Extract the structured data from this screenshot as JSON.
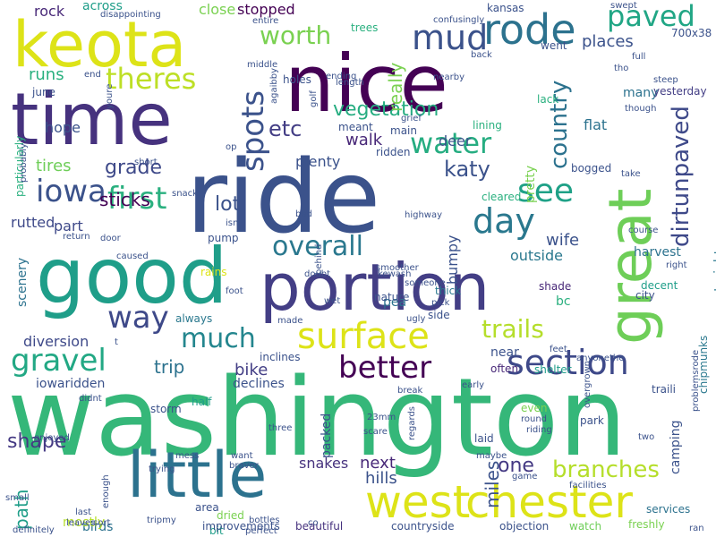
{
  "words": [
    {
      "text": "washington",
      "color": "#35b779"
    },
    {
      "text": "ride",
      "color": "#3b528b"
    },
    {
      "text": "nice",
      "color": "#440154"
    },
    {
      "text": "time",
      "color": "#46327e"
    },
    {
      "text": "good",
      "color": "#1f9e89"
    },
    {
      "text": "portion",
      "color": "#433e85"
    },
    {
      "text": "great",
      "color": "#6ece58"
    },
    {
      "text": "keota",
      "color": "#dde318"
    },
    {
      "text": "little",
      "color": "#2c728e"
    },
    {
      "text": "west",
      "color": "#dde318"
    },
    {
      "text": "chester",
      "color": "#dde318"
    },
    {
      "text": "rode",
      "color": "#2c728e"
    },
    {
      "text": "surface",
      "color": "#dde318"
    },
    {
      "text": "section",
      "color": "#3e4989"
    },
    {
      "text": "better",
      "color": "#440154"
    },
    {
      "text": "mud",
      "color": "#3b528b"
    },
    {
      "text": "iowa",
      "color": "#3b528b"
    },
    {
      "text": "first",
      "color": "#2ab07f"
    },
    {
      "text": "day",
      "color": "#2a788e"
    },
    {
      "text": "see",
      "color": "#1fa187"
    },
    {
      "text": "water",
      "color": "#26ad81"
    },
    {
      "text": "paved",
      "color": "#21a685"
    },
    {
      "text": "dirtunpaved",
      "color": "#3e4989"
    },
    {
      "text": "country",
      "color": "#2c728e"
    },
    {
      "text": "spots",
      "color": "#3b528b"
    },
    {
      "text": "theres",
      "color": "#bddf26"
    },
    {
      "text": "worth",
      "color": "#7ad151"
    },
    {
      "text": "vegetation",
      "color": "#26ad81"
    },
    {
      "text": "much",
      "color": "#24868e"
    },
    {
      "text": "way",
      "color": "#3e4989"
    },
    {
      "text": "overall",
      "color": "#2a788e"
    },
    {
      "text": "trails",
      "color": "#b5de2b"
    },
    {
      "text": "gravel",
      "color": "#22a884"
    },
    {
      "text": "branches",
      "color": "#b5de2b"
    },
    {
      "text": "shape",
      "color": "#443983"
    },
    {
      "text": "grade",
      "color": "#3e4989"
    },
    {
      "text": "katy",
      "color": "#3b528b"
    },
    {
      "text": "etc",
      "color": "#433e85"
    },
    {
      "text": "lot",
      "color": "#3b528b"
    },
    {
      "text": "sticks",
      "color": "#440154"
    },
    {
      "text": "really",
      "color": "#7ad151"
    },
    {
      "text": "walk",
      "color": "#482878"
    },
    {
      "text": "places",
      "color": "#3b528b"
    },
    {
      "text": "plenty",
      "color": "#3b528b"
    },
    {
      "text": "bike",
      "color": "#433e85"
    },
    {
      "text": "trip",
      "color": "#2c728e"
    },
    {
      "text": "stopped",
      "color": "#440154"
    },
    {
      "text": "close",
      "color": "#7ad151"
    },
    {
      "text": "across",
      "color": "#1f9e89"
    },
    {
      "text": "rock",
      "color": "#482878"
    },
    {
      "text": "runs",
      "color": "#2ab07f"
    },
    {
      "text": "deer",
      "color": "#3b528b"
    },
    {
      "text": "wife",
      "color": "#3b528b"
    },
    {
      "text": "harvest",
      "color": "#2c728e"
    },
    {
      "text": "outside",
      "color": "#2a788e"
    },
    {
      "text": "rutted",
      "color": "#3e4989"
    },
    {
      "text": "part",
      "color": "#3e4989"
    },
    {
      "text": "tires",
      "color": "#6ece58"
    },
    {
      "text": "hope",
      "color": "#3b528b"
    },
    {
      "text": "scenery",
      "color": "#2c728e"
    },
    {
      "text": "diversion",
      "color": "#3e4989"
    },
    {
      "text": "next",
      "color": "#482878"
    },
    {
      "text": "snakes",
      "color": "#46327e"
    },
    {
      "text": "one",
      "color": "#443983"
    },
    {
      "text": "hills",
      "color": "#3b528b"
    },
    {
      "text": "miles",
      "color": "#3b528b"
    },
    {
      "text": "path",
      "color": "#1f9e89"
    },
    {
      "text": "birds",
      "color": "#2c728e"
    },
    {
      "text": "mostly",
      "color": "#b5de2b"
    },
    {
      "text": "bit",
      "color": "#1f9e89"
    },
    {
      "text": "area",
      "color": "#3b528b"
    },
    {
      "text": "dried",
      "color": "#7ad151"
    },
    {
      "text": "improvements",
      "color": "#3b528b"
    },
    {
      "text": "beautiful",
      "color": "#46327e"
    },
    {
      "text": "countryside",
      "color": "#3b528b"
    },
    {
      "text": "objection",
      "color": "#3b528b"
    },
    {
      "text": "watch",
      "color": "#6ece58"
    },
    {
      "text": "freshly",
      "color": "#7ad151"
    },
    {
      "text": "services",
      "color": "#2c728e"
    },
    {
      "text": "iowaridden",
      "color": "#3b528b"
    },
    {
      "text": "half",
      "color": "#1f9e89"
    },
    {
      "text": "declines",
      "color": "#3b528b"
    },
    {
      "text": "inclines",
      "color": "#3b528b"
    },
    {
      "text": "always",
      "color": "#2a788e"
    },
    {
      "text": "packed",
      "color": "#3b528b"
    },
    {
      "text": "near",
      "color": "#3b528b"
    },
    {
      "text": "often",
      "color": "#482878"
    },
    {
      "text": "decent",
      "color": "#1f9e89"
    },
    {
      "text": "bumpy",
      "color": "#3b528b"
    },
    {
      "text": "pea",
      "color": "#2c728e"
    },
    {
      "text": "thick",
      "color": "#2a788e"
    },
    {
      "text": "bc",
      "color": "#2ab07f"
    },
    {
      "text": "shade",
      "color": "#482878"
    },
    {
      "text": "city",
      "color": "#3b528b"
    },
    {
      "text": "pretty",
      "color": "#7ad151"
    },
    {
      "text": "flat",
      "color": "#2c728e"
    },
    {
      "text": "many",
      "color": "#2c728e"
    },
    {
      "text": "yesterday",
      "color": "#433e85"
    },
    {
      "text": "straight",
      "color": "#2a788e"
    },
    {
      "text": "chipmunks",
      "color": "#2a788e"
    },
    {
      "text": "camping",
      "color": "#3b528b"
    },
    {
      "text": "traili",
      "color": "#3b528b"
    },
    {
      "text": "park",
      "color": "#3b528b"
    },
    {
      "text": "shelter",
      "color": "#1f9e89"
    },
    {
      "text": "laid",
      "color": "#3b528b"
    },
    {
      "text": "even",
      "color": "#7ad151"
    },
    {
      "text": "storm",
      "color": "#3b528b"
    },
    {
      "text": "rains",
      "color": "#dde318"
    },
    {
      "text": "pump",
      "color": "#3b528b"
    },
    {
      "text": "lining",
      "color": "#2ab07f"
    },
    {
      "text": "ridden",
      "color": "#3b528b"
    },
    {
      "text": "main",
      "color": "#3b528b"
    },
    {
      "text": "meant",
      "color": "#3b528b"
    },
    {
      "text": "lack",
      "color": "#2ab07f"
    },
    {
      "text": "went",
      "color": "#3b528b"
    },
    {
      "text": "kansas",
      "color": "#3b528b"
    },
    {
      "text": "trees",
      "color": "#2ab07f"
    },
    {
      "text": "holes",
      "color": "#3b528b"
    },
    {
      "text": "end",
      "color": "#3b528b"
    },
    {
      "text": "june",
      "color": "#3b528b"
    },
    {
      "text": "particularly",
      "color": "#2ab07f"
    },
    {
      "text": "bogged",
      "color": "#3b528b"
    },
    {
      "text": "cleared",
      "color": "#2ab07f"
    },
    {
      "text": "nature",
      "color": "#3b528b"
    },
    {
      "text": "side",
      "color": "#3b528b"
    },
    {
      "text": "700x38",
      "color": "#3b528b"
    },
    {
      "text": "disappointing",
      "color": "#3b528b"
    },
    {
      "text": "entire",
      "color": "#3b528b"
    },
    {
      "text": "confusingly",
      "color": "#3b528b"
    },
    {
      "text": "swept",
      "color": "#3b528b"
    },
    {
      "text": "full",
      "color": "#3b528b"
    },
    {
      "text": "tho",
      "color": "#3b528b"
    },
    {
      "text": "steep",
      "color": "#3b528b"
    },
    {
      "text": "though",
      "color": "#3b528b"
    },
    {
      "text": "middle",
      "color": "#3b528b"
    },
    {
      "text": "ending",
      "color": "#3b528b"
    },
    {
      "text": "back",
      "color": "#3b528b"
    },
    {
      "text": "length",
      "color": "#3b528b"
    },
    {
      "text": "nearby",
      "color": "#3b528b"
    },
    {
      "text": "grief",
      "color": "#3b528b"
    },
    {
      "text": "take",
      "color": "#3b528b"
    },
    {
      "text": "agaibby",
      "color": "#3b528b"
    },
    {
      "text": "golf",
      "color": "#3b528b"
    },
    {
      "text": "youre",
      "color": "#3b528b"
    },
    {
      "text": "probably",
      "color": "#3b528b"
    },
    {
      "text": "short",
      "color": "#3b528b"
    },
    {
      "text": "op",
      "color": "#3b528b"
    },
    {
      "text": "snack",
      "color": "#3b528b"
    },
    {
      "text": "bad",
      "color": "#3b528b"
    },
    {
      "text": "isn",
      "color": "#3b528b"
    },
    {
      "text": "behind",
      "color": "#3b528b"
    },
    {
      "text": "highway",
      "color": "#3b528b"
    },
    {
      "text": "door",
      "color": "#3b528b"
    },
    {
      "text": "return",
      "color": "#3b528b"
    },
    {
      "text": "caused",
      "color": "#3b528b"
    },
    {
      "text": "foot",
      "color": "#3b528b"
    },
    {
      "text": "doubt",
      "color": "#3b528b"
    },
    {
      "text": "kewash",
      "color": "#3b528b"
    },
    {
      "text": "smoother",
      "color": "#3b528b"
    },
    {
      "text": "someone",
      "color": "#3b528b"
    },
    {
      "text": "pick",
      "color": "#3b528b"
    },
    {
      "text": "wet",
      "color": "#3b528b"
    },
    {
      "text": "made",
      "color": "#3b528b"
    },
    {
      "text": "ugly",
      "color": "#3b528b"
    },
    {
      "text": "course",
      "color": "#3b528b"
    },
    {
      "text": "right",
      "color": "#3b528b"
    },
    {
      "text": "feet",
      "color": "#3b528b"
    },
    {
      "text": "anyonethe",
      "color": "#3b528b"
    },
    {
      "text": "break",
      "color": "#3b528b"
    },
    {
      "text": "early",
      "color": "#3b528b"
    },
    {
      "text": "didnt",
      "color": "#3b528b"
    },
    {
      "text": "three",
      "color": "#3b528b"
    },
    {
      "text": "scare",
      "color": "#3b528b"
    },
    {
      "text": "23mm",
      "color": "#3b528b"
    },
    {
      "text": "regards",
      "color": "#3b528b"
    },
    {
      "text": "riding",
      "color": "#3b528b"
    },
    {
      "text": "round",
      "color": "#3b528b"
    },
    {
      "text": "overgrown",
      "color": "#3b528b"
    },
    {
      "text": "two",
      "color": "#3b528b"
    },
    {
      "text": "problemsrode",
      "color": "#3b528b"
    },
    {
      "text": "enjoyed",
      "color": "#3b528b"
    },
    {
      "text": "want",
      "color": "#3b528b"
    },
    {
      "text": "braver",
      "color": "#3b528b"
    },
    {
      "text": "maybe",
      "color": "#3b528b"
    },
    {
      "text": "mess",
      "color": "#3b528b"
    },
    {
      "text": "trying",
      "color": "#3b528b"
    },
    {
      "text": "game",
      "color": "#3b528b"
    },
    {
      "text": "enough",
      "color": "#3b528b"
    },
    {
      "text": "small",
      "color": "#3b528b"
    },
    {
      "text": "last",
      "color": "#3b528b"
    },
    {
      "text": "leaves",
      "color": "#3b528b"
    },
    {
      "text": "sort",
      "color": "#3b528b"
    },
    {
      "text": "tripmy",
      "color": "#3b528b"
    },
    {
      "text": "bottles",
      "color": "#3b528b"
    },
    {
      "text": "perfect",
      "color": "#3b528b"
    },
    {
      "text": "co",
      "color": "#3b528b"
    },
    {
      "text": "facilities",
      "color": "#3b528b"
    },
    {
      "text": "definitely",
      "color": "#3b528b"
    },
    {
      "text": "ran",
      "color": "#3b528b"
    },
    {
      "text": "t",
      "color": "#3b528b"
    }
  ]
}
